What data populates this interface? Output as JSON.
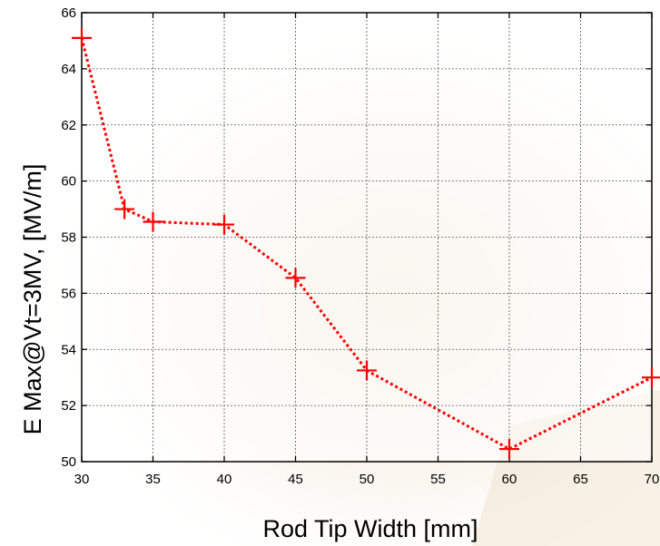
{
  "chart_data": {
    "type": "line",
    "title": "",
    "xlabel": "Rod Tip Width [mm]",
    "ylabel": "E Max@Vt=3MV, [MV/m]",
    "xlim": [
      30,
      70
    ],
    "ylim": [
      50,
      66
    ],
    "xticks": [
      30,
      35,
      40,
      45,
      50,
      55,
      60,
      65,
      70
    ],
    "yticks": [
      50,
      52,
      54,
      56,
      58,
      60,
      62,
      64,
      66
    ],
    "xtick_labels": [
      "30",
      "35",
      "40",
      "45",
      "50",
      "55",
      "60",
      "65",
      "70"
    ],
    "ytick_labels": [
      "50",
      "52",
      "54",
      "56",
      "58",
      "60",
      "62",
      "64",
      "66"
    ],
    "grid": true,
    "legend": "none",
    "series": [
      {
        "x": [
          30,
          33,
          35,
          40,
          45,
          50,
          60,
          70
        ],
        "y": [
          65.1,
          59.0,
          58.55,
          58.45,
          56.55,
          53.25,
          50.45,
          53.0
        ],
        "color": "#ff0000",
        "line_style": "dotted",
        "marker": "plus"
      }
    ]
  }
}
